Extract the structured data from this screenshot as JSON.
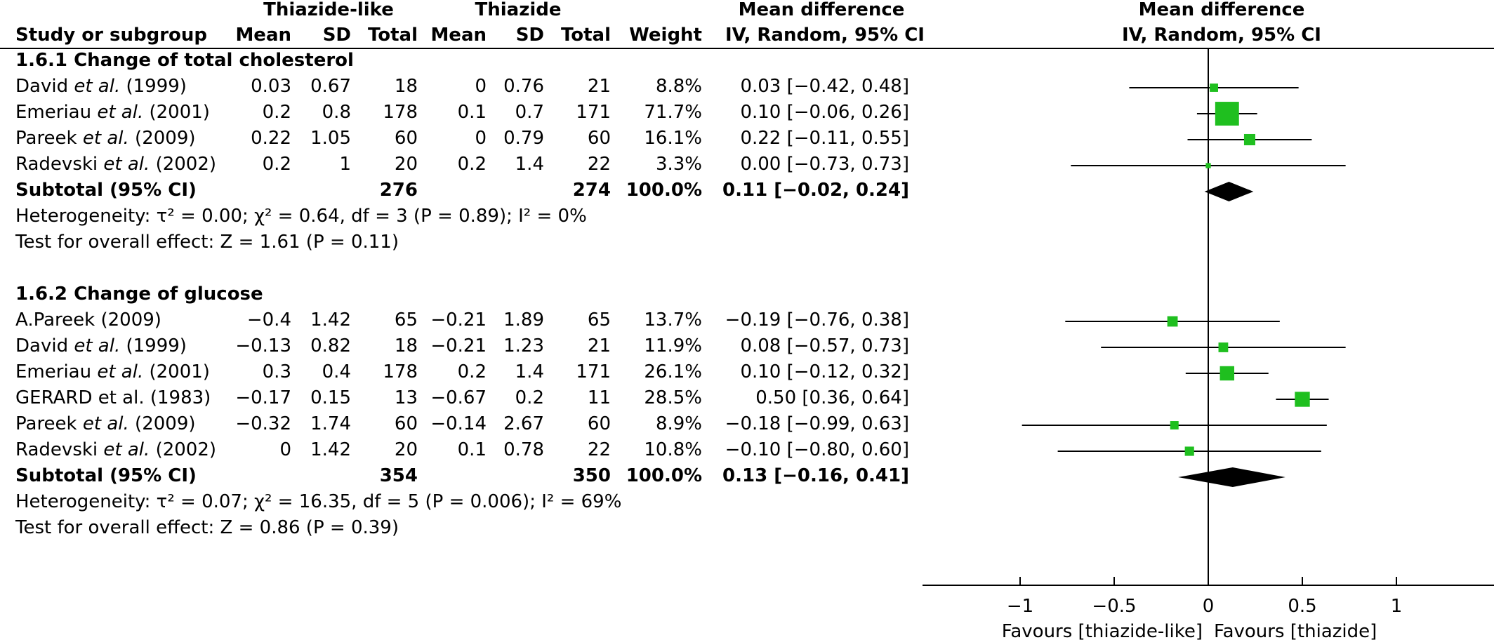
{
  "header": {
    "group1": "Thiazide-like",
    "group2": "Thiazide",
    "md_col_title": "Mean difference",
    "md_col_method": "IV, Random, 95% CI",
    "plot_title": "Mean difference",
    "plot_method": "IV, Random, 95% CI",
    "study_col": "Study or subgroup",
    "mean1": "Mean",
    "sd1": "SD",
    "total1": "Total",
    "mean2": "Mean",
    "sd2": "SD",
    "total2": "Total",
    "weight": "Weight"
  },
  "subgroups": [
    {
      "title": "1.6.1 Change of total cholesterol",
      "studies": [
        {
          "author": "David",
          "etal": "et al.",
          "year": "(1999)",
          "mean1": "0.03",
          "sd1": "0.67",
          "total1": "18",
          "mean2": "0",
          "sd2": "0.76",
          "total2": "21",
          "weight": "8.8%",
          "ci": "0.03 [−0.42, 0.48]"
        },
        {
          "author": "Emeriau",
          "etal": "et al.",
          "year": "(2001)",
          "mean1": "0.2",
          "sd1": "0.8",
          "total1": "178",
          "mean2": "0.1",
          "sd2": "0.7",
          "total2": "171",
          "weight": "71.7%",
          "ci": "0.10 [−0.06, 0.26]"
        },
        {
          "author": "Pareek",
          "etal": "et al.",
          "year": "(2009)",
          "mean1": "0.22",
          "sd1": "1.05",
          "total1": "60",
          "mean2": "0",
          "sd2": "0.79",
          "total2": "60",
          "weight": "16.1%",
          "ci": "0.22 [−0.11, 0.55]"
        },
        {
          "author": "Radevski",
          "etal": "et al.",
          "year": "(2002)",
          "mean1": "0.2",
          "sd1": "1",
          "total1": "20",
          "mean2": "0.2",
          "sd2": "1.4",
          "total2": "22",
          "weight": "3.3%",
          "ci": "0.00 [−0.73, 0.73]"
        }
      ],
      "subtotal": {
        "label": "Subtotal (95% CI)",
        "total1": "276",
        "total2": "274",
        "weight": "100.0%",
        "ci": "0.11 [−0.02, 0.24]"
      },
      "heterogeneity": "Heterogeneity: τ² = 0.00; χ² = 0.64, df = 3 (P = 0.89); I² = 0%",
      "overall": "Test for overall effect: Z = 1.61 (P = 0.11)"
    },
    {
      "title": "1.6.2 Change of glucose",
      "studies": [
        {
          "author": "A.Pareek",
          "etal": "",
          "year": "(2009)",
          "mean1": "−0.4",
          "sd1": "1.42",
          "total1": "65",
          "mean2": "−0.21",
          "sd2": "1.89",
          "total2": "65",
          "weight": "13.7%",
          "ci": "−0.19 [−0.76, 0.38]"
        },
        {
          "author": "David",
          "etal": "et al.",
          "year": "(1999)",
          "mean1": "−0.13",
          "sd1": "0.82",
          "total1": "18",
          "mean2": "−0.21",
          "sd2": "1.23",
          "total2": "21",
          "weight": "11.9%",
          "ci": "0.08 [−0.57, 0.73]"
        },
        {
          "author": "Emeriau",
          "etal": "et al.",
          "year": "(2001)",
          "mean1": "0.3",
          "sd1": "0.4",
          "total1": "178",
          "mean2": "0.2",
          "sd2": "1.4",
          "total2": "171",
          "weight": "26.1%",
          "ci": "0.10 [−0.12, 0.32]"
        },
        {
          "author": "GERARD et al.",
          "etal": "",
          "year": "(1983)",
          "mean1": "−0.17",
          "sd1": "0.15",
          "total1": "13",
          "mean2": "−0.67",
          "sd2": "0.2",
          "total2": "11",
          "weight": "28.5%",
          "ci": "0.50 [0.36, 0.64]"
        },
        {
          "author": "Pareek",
          "etal": "et al.",
          "year": "(2009)",
          "mean1": "−0.32",
          "sd1": "1.74",
          "total1": "60",
          "mean2": "−0.14",
          "sd2": "2.67",
          "total2": "60",
          "weight": "8.9%",
          "ci": "−0.18 [−0.99, 0.63]"
        },
        {
          "author": "Radevski",
          "etal": "et al.",
          "year": "(2002)",
          "mean1": "0",
          "sd1": "1.42",
          "total1": "20",
          "mean2": "0.1",
          "sd2": "0.78",
          "total2": "22",
          "weight": "10.8%",
          "ci": "−0.10 [−0.80, 0.60]"
        }
      ],
      "subtotal": {
        "label": "Subtotal (95% CI)",
        "total1": "354",
        "total2": "350",
        "weight": "100.0%",
        "ci": "0.13 [−0.16, 0.41]"
      },
      "heterogeneity": "Heterogeneity: τ² = 0.07; χ² = 16.35, df = 5 (P = 0.006); I² = 69%",
      "overall": "Test for overall effect: Z = 0.86 (P = 0.39)"
    }
  ],
  "axis": {
    "ticks": [
      "−1",
      "−0.5",
      "0",
      "0.5",
      "1"
    ],
    "favours_left": "Favours [thiazide-like]",
    "favours_right": "Favours [thiazide]"
  },
  "colors": {
    "marker": "#1fbf1f",
    "diamond": "#000000",
    "line": "#000000"
  },
  "chart_data": {
    "type": "forest",
    "xlim": [
      -1.5,
      1.5
    ],
    "x_ticks": [
      -1,
      -0.5,
      0,
      0.5,
      1
    ],
    "groups": [
      {
        "name": "1.6.1 Change of total cholesterol",
        "points": [
          {
            "study": "David et al. (1999)",
            "md": 0.03,
            "lo": -0.42,
            "hi": 0.48,
            "weight": 8.8
          },
          {
            "study": "Emeriau et al. (2001)",
            "md": 0.1,
            "lo": -0.06,
            "hi": 0.26,
            "weight": 71.7
          },
          {
            "study": "Pareek et al. (2009)",
            "md": 0.22,
            "lo": -0.11,
            "hi": 0.55,
            "weight": 16.1
          },
          {
            "study": "Radevski et al. (2002)",
            "md": 0.0,
            "lo": -0.73,
            "hi": 0.73,
            "weight": 3.3
          }
        ],
        "pooled": {
          "md": 0.11,
          "lo": -0.02,
          "hi": 0.24
        }
      },
      {
        "name": "1.6.2 Change of glucose",
        "points": [
          {
            "study": "A.Pareek (2009)",
            "md": -0.19,
            "lo": -0.76,
            "hi": 0.38,
            "weight": 13.7
          },
          {
            "study": "David et al. (1999)",
            "md": 0.08,
            "lo": -0.57,
            "hi": 0.73,
            "weight": 11.9
          },
          {
            "study": "Emeriau et al. (2001)",
            "md": 0.1,
            "lo": -0.12,
            "hi": 0.32,
            "weight": 26.1
          },
          {
            "study": "GERARD et al. (1983)",
            "md": 0.5,
            "lo": 0.36,
            "hi": 0.64,
            "weight": 28.5
          },
          {
            "study": "Pareek et al. (2009)",
            "md": -0.18,
            "lo": -0.99,
            "hi": 0.63,
            "weight": 8.9
          },
          {
            "study": "Radevski et al. (2002)",
            "md": -0.1,
            "lo": -0.8,
            "hi": 0.6,
            "weight": 10.8
          }
        ],
        "pooled": {
          "md": 0.13,
          "lo": -0.16,
          "hi": 0.41
        }
      }
    ]
  }
}
